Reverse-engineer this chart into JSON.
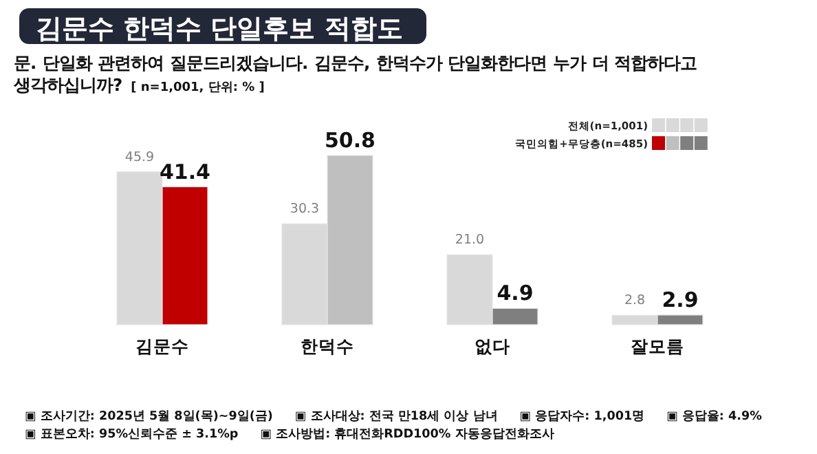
{
  "chart_data": {
    "type": "bar",
    "title": "김문수 한덕수 단일후보 적합도",
    "subtitle": "문. 단일화 관련하여 질문드리겠습니다. 김문수, 한덕수가 단일화한다면 누가 더 적합하다고 생각하십니까?",
    "categories": [
      "김문수",
      "한덕수",
      "없다",
      "잘모름"
    ],
    "series": [
      {
        "name": "전체(n=1,001)",
        "color": "#d9d9d9",
        "values": [
          45.9,
          30.3,
          21.0,
          2.8
        ],
        "value_labels": [
          "45.9",
          "30.3",
          "21.0",
          "2.8"
        ]
      },
      {
        "name": "국민의힘+무당층(n=485)",
        "colors": [
          "#c00000",
          "#bfbfbf",
          "#7f7f7f",
          "#7f7f7f"
        ],
        "values": [
          41.4,
          50.8,
          4.9,
          2.9
        ],
        "value_labels": [
          "41.4",
          "50.8",
          "4.9",
          "2.9"
        ]
      }
    ],
    "legend": "top right",
    "annotations": [
      "[ n=1,001, 단위: % ]",
      "▣ 조사기간: 2025년 5월 8일(목)~9일(금)",
      "▣ 조사대상: 전국 만18세 이상 남녀",
      "▣ 응답자수: 1,001명",
      "▣ 응답율: 4.9%",
      "▣ 표본오차: 95%신뢰수준 ± 3.1%p",
      "▣ 조사방법: 휴대전화RDD100% 자동응답전화조사"
    ]
  }
}
